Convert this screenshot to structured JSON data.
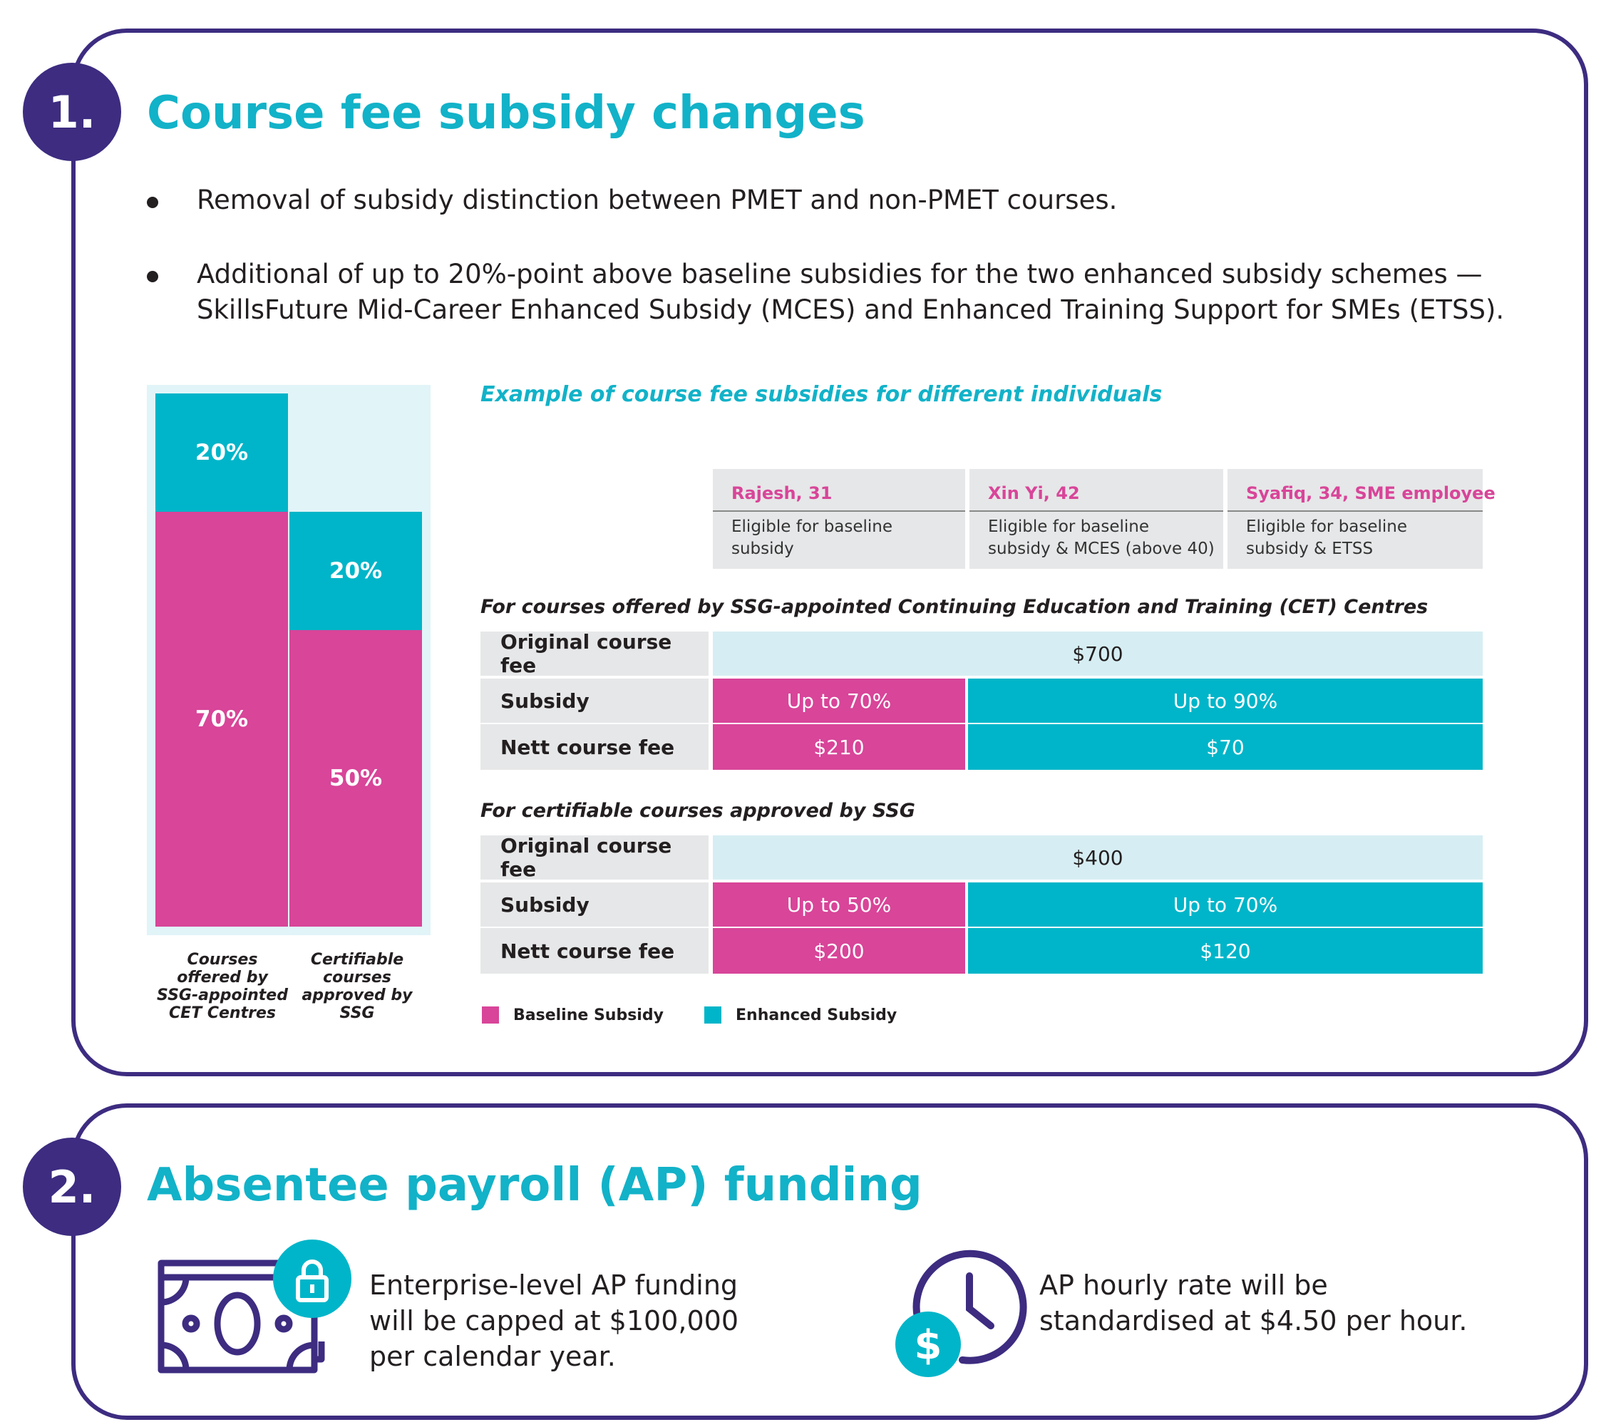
{
  "section1": {
    "number": "1.",
    "title": "Course fee subsidy changes",
    "bullets": [
      "Removal of subsidy distinction between PMET and non-PMET courses.",
      "Additional of up to 20%-point above baseline subsidies for the two enhanced subsidy schemes —",
      "SkillsFuture Mid-Career Enhanced Subsidy (MCES) and Enhanced Training Support for SMEs (ETSS)."
    ]
  },
  "chart_data": {
    "type": "bar",
    "stacked": true,
    "title": "",
    "categories": [
      "Courses offered by SSG-appointed CET Centres",
      "Certifiable courses approved by SSG"
    ],
    "category_lines": [
      [
        "Courses",
        "offered by",
        "SSG-appointed",
        "CET Centres"
      ],
      [
        "Certifiable",
        "courses",
        "approved by",
        "SSG"
      ]
    ],
    "series": [
      {
        "name": "Baseline Subsidy",
        "values": [
          70,
          50
        ],
        "labels": [
          "70%",
          "50%"
        ],
        "color": "#d84599"
      },
      {
        "name": "Enhanced Subsidy",
        "values": [
          20,
          20
        ],
        "labels": [
          "20%",
          "20%"
        ],
        "color": "#00b5c9"
      }
    ],
    "ylim": [
      0,
      90
    ]
  },
  "example": {
    "title": "Example of course fee subsidies for different individuals",
    "persons": [
      {
        "name": "Rajesh, 31",
        "desc": [
          "Eligible for baseline",
          "subsidy"
        ]
      },
      {
        "name": "Xin Yi, 42",
        "desc": [
          "Eligible for baseline",
          "subsidy & MCES (above 40)"
        ]
      },
      {
        "name": "Syafiq, 34, SME employee",
        "desc": [
          "Eligible for baseline",
          "subsidy & ETSS"
        ]
      }
    ],
    "row_labels": [
      "Original course fee",
      "Subsidy",
      "Nett course fee"
    ],
    "tables": [
      {
        "caption": "For courses offered by SSG-appointed Continuing Education and Training (CET) Centres",
        "original_fee": "$700",
        "subsidy_baseline": "Up to 70%",
        "subsidy_enhanced": "Up to 90%",
        "nett_baseline": "$210",
        "nett_enhanced": "$70"
      },
      {
        "caption": "For certifiable courses approved by SSG",
        "original_fee": "$400",
        "subsidy_baseline": "Up to 50%",
        "subsidy_enhanced": "Up to 70%",
        "nett_baseline": "$200",
        "nett_enhanced": "$120"
      }
    ],
    "legend": [
      "Baseline Subsidy",
      "Enhanced Subsidy"
    ]
  },
  "section2": {
    "number": "2.",
    "title": "Absentee payroll (AP) funding",
    "items": [
      {
        "icon": "cash-lock-icon",
        "lines": [
          "Enterprise-level AP funding",
          "will be capped at $100,000",
          "per calendar year."
        ]
      },
      {
        "icon": "clock-dollar-icon",
        "dollar": "$",
        "lines": [
          "AP hourly rate will be",
          "standardised at $4.50 per hour."
        ]
      }
    ]
  },
  "colors": {
    "navy": "#3d2c80",
    "teal": "#00b5c9",
    "pink": "#d84599",
    "title": "#12b2c8"
  }
}
